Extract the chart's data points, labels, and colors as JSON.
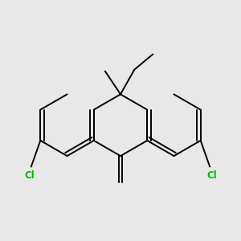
{
  "bg_color": "#e8e8e8",
  "bond_color": "#000000",
  "cl_color": "#00bb00",
  "lw": 1.4,
  "dbo": 0.12
}
